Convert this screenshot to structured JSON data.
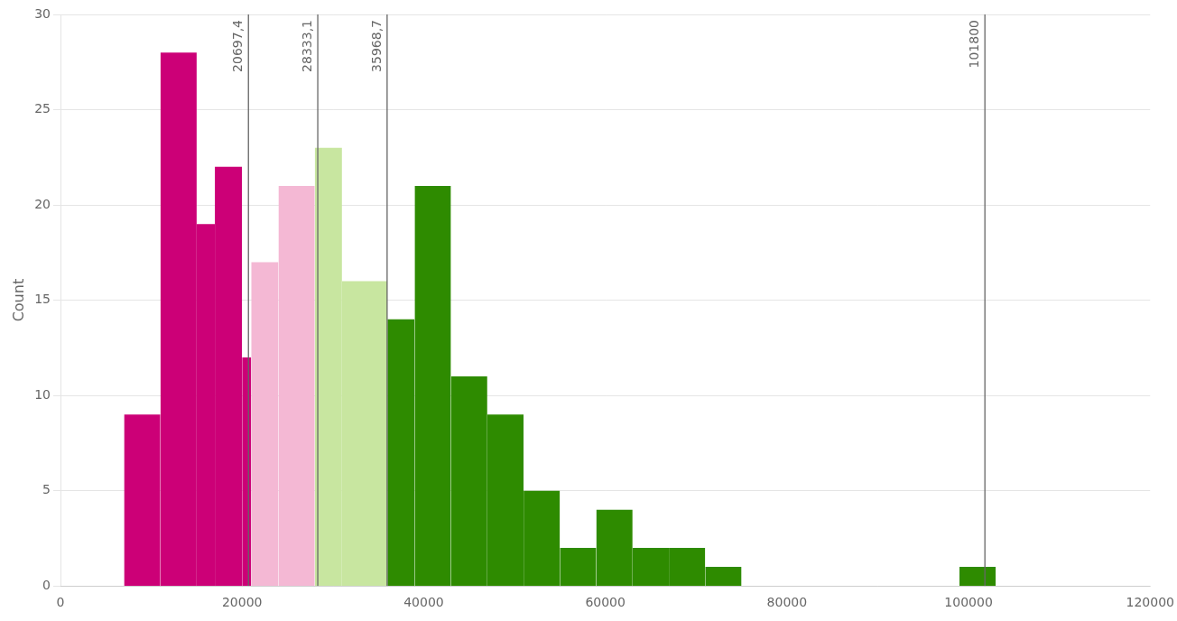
{
  "chart_data": {
    "type": "histogram",
    "bins": [
      7000,
      11000,
      15000,
      17000,
      20000,
      21000,
      24000,
      28000,
      31000,
      36000,
      39000,
      43000,
      47000,
      51000,
      55000,
      59000,
      63000,
      67000,
      71000,
      75000,
      99000,
      103000
    ],
    "values": [
      9,
      28,
      19,
      22,
      12,
      17,
      21,
      23,
      16,
      14,
      21,
      11,
      9,
      5,
      2,
      4,
      2,
      2,
      1,
      null,
      1
    ],
    "colors": [
      "#cc0077",
      "#cc0077",
      "#cc0077",
      "#cc0077",
      "#cc0077",
      "#f4b8d4",
      "#f4b8d4",
      "#c8e6a0",
      "#c8e6a0",
      "#2e8b00",
      "#2e8b00",
      "#2e8b00",
      "#2e8b00",
      "#2e8b00",
      "#2e8b00",
      "#2e8b00",
      "#2e8b00",
      "#2e8b00",
      "#2e8b00",
      null,
      "#2e8b00"
    ],
    "annotations": [
      {
        "x": 20697.4,
        "label": "20697,4"
      },
      {
        "x": 28333.1,
        "label": "28333,1"
      },
      {
        "x": 35968.7,
        "label": "35968,7"
      },
      {
        "x": 101800,
        "label": "101800"
      }
    ],
    "ylabel": "Count",
    "xlim": [
      0,
      120000
    ],
    "xticks": [
      0,
      20000,
      40000,
      60000,
      80000,
      100000,
      120000
    ],
    "ylim": [
      0,
      30
    ],
    "yticks": [
      0,
      5,
      10,
      15,
      20,
      25,
      30
    ],
    "grid": "y"
  }
}
